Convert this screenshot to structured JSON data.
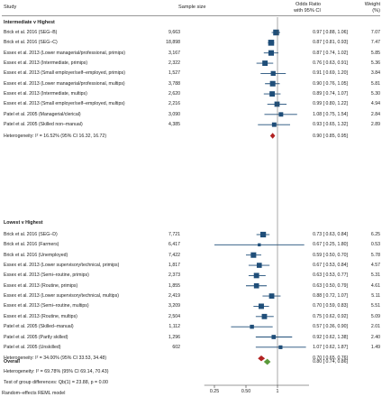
{
  "header": {
    "study": "Study",
    "sample_size": "Sample size",
    "or_line1": "Odds Ratio",
    "or_line2": "with 95% CI",
    "weight_line1": "Weight",
    "weight_line2": "(%)"
  },
  "groups": [
    {
      "title": "Intermediate v Highest",
      "heterogeneity": "Heterogeneity: I² = 16.52% (95% CI 16.32, 16.72)",
      "pooled": {
        "or": 0.9,
        "lo": 0.85,
        "hi": 0.95,
        "text": "0.90 [  0.85,  0.95]"
      },
      "rows": [
        {
          "study": "Brick et al. 2016 (SEG–B)",
          "n": "9,663",
          "or": 0.97,
          "lo": 0.88,
          "hi": 1.06,
          "ci_text": "0.97 [  0.88,  1.06]",
          "weight": "7.07"
        },
        {
          "study": "Brick et al. 2016 (SEG–C)",
          "n": "18,898",
          "or": 0.87,
          "lo": 0.81,
          "hi": 0.93,
          "ci_text": "0.87 [  0.81,  0.93]",
          "weight": "7.47"
        },
        {
          "study": "Essex et al. 2013 (Lower managerial/professional, primips)",
          "n": "3,167",
          "or": 0.87,
          "lo": 0.74,
          "hi": 1.02,
          "ci_text": "0.87 [  0.74,  1.02]",
          "weight": "5.85"
        },
        {
          "study": "Essex et al. 2013 (Intermediate, primips)",
          "n": "2,322",
          "or": 0.76,
          "lo": 0.63,
          "hi": 0.91,
          "ci_text": "0.76 [  0.63,  0.91]",
          "weight": "5.36"
        },
        {
          "study": "Essex et al. 2013 (Small employer/self–employed, primips)",
          "n": "1,527",
          "or": 0.91,
          "lo": 0.69,
          "hi": 1.2,
          "ci_text": "0.91 [  0.69,  1.20]",
          "weight": "3.84"
        },
        {
          "study": "Essex et al. 2013 (Lower managerial/professional, multips)",
          "n": "3,788",
          "or": 0.9,
          "lo": 0.76,
          "hi": 1.05,
          "ci_text": "0.90 [  0.76,  1.05]",
          "weight": "5.81"
        },
        {
          "study": "Essex et al. 2013 (Intermediate, multips)",
          "n": "2,620",
          "or": 0.89,
          "lo": 0.74,
          "hi": 1.07,
          "ci_text": "0.89 [  0.74,  1.07]",
          "weight": "5.30"
        },
        {
          "study": "Essex et al. 2013 (Small employer/self–employed, multips)",
          "n": "2,216",
          "or": 0.99,
          "lo": 0.8,
          "hi": 1.22,
          "ci_text": "0.99 [  0.80,  1.22]",
          "weight": "4.94"
        },
        {
          "study": "Patel et al. 2005 (Managerial/clerical)",
          "n": "3,090",
          "or": 1.08,
          "lo": 0.75,
          "hi": 1.54,
          "ci_text": "1.08 [  0.75,  1.54]",
          "weight": "2.84"
        },
        {
          "study": "Patel et al. 2005 (Skilled non–manual)",
          "n": "4,385",
          "or": 0.93,
          "lo": 0.65,
          "hi": 1.32,
          "ci_text": "0.93 [  0.65,  1.32]",
          "weight": "2.89"
        }
      ]
    },
    {
      "title": "Lowest v Highest",
      "heterogeneity": "Heterogeneity: I² = 34.00% (95% CI 33.53, 34.48)",
      "pooled": {
        "or": 0.7,
        "lo": 0.65,
        "hi": 0.76,
        "text": "0.70 [  0.65,  0.76]"
      },
      "rows": [
        {
          "study": "Brick et al. 2016 (SEG–D)",
          "n": "7,721",
          "or": 0.73,
          "lo": 0.63,
          "hi": 0.84,
          "ci_text": "0.73 [  0.63,  0.84]",
          "weight": "6.25"
        },
        {
          "study": "Brick et al. 2016 (Farmers)",
          "n": "6,417",
          "or": 0.67,
          "lo": 0.25,
          "hi": 1.8,
          "ci_text": "0.67 [  0.25,  1.80]",
          "weight": "0.53"
        },
        {
          "study": "Brick et al. 2016 (Unemployed)",
          "n": "7,422",
          "or": 0.59,
          "lo": 0.5,
          "hi": 0.7,
          "ci_text": "0.59 [  0.50,  0.70]",
          "weight": "5.78"
        },
        {
          "study": "Essex et al. 2013 (Lower supervisory/technical, primips)",
          "n": "1,817",
          "or": 0.67,
          "lo": 0.53,
          "hi": 0.84,
          "ci_text": "0.67 [  0.53,  0.84]",
          "weight": "4.57"
        },
        {
          "study": "Essex et al. 2013 (Semi–routine, primips)",
          "n": "2,373",
          "or": 0.63,
          "lo": 0.53,
          "hi": 0.77,
          "ci_text": "0.63 [  0.53,  0.77]",
          "weight": "5.31"
        },
        {
          "study": "Essex et al. 2013 (Routine, primips)",
          "n": "1,855",
          "or": 0.63,
          "lo": 0.5,
          "hi": 0.79,
          "ci_text": "0.63 [  0.50,  0.79]",
          "weight": "4.61"
        },
        {
          "study": "Essex et al. 2013 (Lower supervisory/technical, multips)",
          "n": "2,419",
          "or": 0.88,
          "lo": 0.72,
          "hi": 1.07,
          "ci_text": "0.88 [  0.72,  1.07]",
          "weight": "5.11"
        },
        {
          "study": "Essex et al. 2013 (Semi–routine, multips)",
          "n": "3,209",
          "or": 0.7,
          "lo": 0.59,
          "hi": 0.83,
          "ci_text": "0.70 [  0.59,  0.83]",
          "weight": "5.51"
        },
        {
          "study": "Essex et al. 2013 (Routine, multips)",
          "n": "2,504",
          "or": 0.75,
          "lo": 0.62,
          "hi": 0.92,
          "ci_text": "0.75 [  0.62,  0.92]",
          "weight": "5.09"
        },
        {
          "study": "Patel et al. 2005 (Skilled–manual)",
          "n": "1,112",
          "or": 0.57,
          "lo": 0.36,
          "hi": 0.9,
          "ci_text": "0.57 [  0.36,  0.90]",
          "weight": "2.01"
        },
        {
          "study": "Patel et al. 2005 (Partly skilled)",
          "n": "1,296",
          "or": 0.92,
          "lo": 0.62,
          "hi": 1.38,
          "ci_text": "0.92 [  0.62,  1.38]",
          "weight": "2.40"
        },
        {
          "study": "Patel et al. 2005 (Unskilled)",
          "n": "602",
          "or": 1.07,
          "lo": 0.62,
          "hi": 1.87,
          "ci_text": "1.07 [  0.62,  1.87]",
          "weight": "1.49"
        }
      ]
    }
  ],
  "overall": {
    "title": "Overall",
    "heterogeneity": "Heterogeneity: I² = 69.78% (95% CI 69.14, 70.43)",
    "or": 0.8,
    "lo": 0.74,
    "hi": 0.86,
    "text": "0.80 [  0.74,  0.86]"
  },
  "footer": {
    "group_test": "Test of group differences: Qb(1) = 23.88, p = 0.00",
    "model_note": "Random–effects REML model"
  },
  "chart_data": {
    "type": "forest",
    "x_scale": "log",
    "xlim": [
      0.2,
      2.0
    ],
    "x_ticks": [
      0.25,
      0.5,
      1
    ],
    "x_tick_labels": [
      "0.25",
      "0.50",
      "1"
    ],
    "reference_line": 1,
    "colors": {
      "study_marker": "#1f4e79",
      "pooled_diamond": "#b22222",
      "overall_diamond": "#5a9a3a",
      "axis": "#444444"
    }
  }
}
